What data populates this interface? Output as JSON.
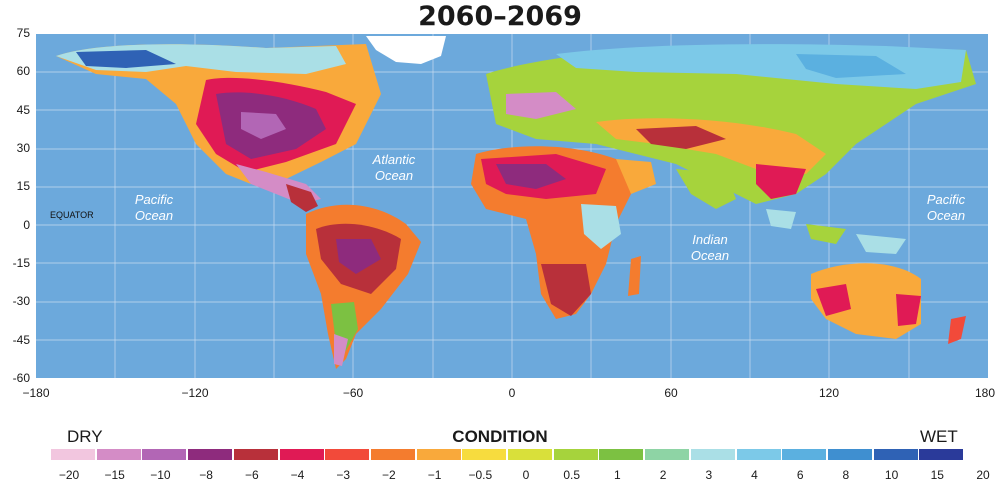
{
  "title": "2060–2069",
  "y_ticks": [
    "75",
    "60",
    "45",
    "30",
    "15",
    "0",
    "-15",
    "-30",
    "-45",
    "-60"
  ],
  "x_ticks": [
    "−180",
    "−120",
    "−60",
    "0",
    "60",
    "120",
    "180"
  ],
  "labels": {
    "atlantic": [
      "Atlantic",
      "Ocean"
    ],
    "pacific_west": [
      "Pacific",
      "Ocean"
    ],
    "pacific_east": [
      "Pacific",
      "Ocean"
    ],
    "indian": [
      "Indian",
      "Ocean"
    ],
    "equator": "EQUATOR"
  },
  "legend": {
    "title": "CONDITION",
    "dry_label": "DRY",
    "wet_label": "WET",
    "ticks": [
      "−20",
      "−15",
      "−10",
      "−8",
      "−6",
      "−4",
      "−3",
      "−2",
      "−1",
      "−0.5",
      "0",
      "0.5",
      "1",
      "2",
      "3",
      "4",
      "6",
      "8",
      "10",
      "15",
      "20"
    ],
    "colors": [
      "#f2c6df",
      "#d48cc6",
      "#b266b5",
      "#8e2b7d",
      "#b8303a",
      "#e01a55",
      "#f24a3a",
      "#f47c2e",
      "#f9a93b",
      "#f7dc3e",
      "#d9e03a",
      "#a6d33c",
      "#7cc142",
      "#8ed4a5",
      "#aadfe6",
      "#7cc9e8",
      "#5bb0e0",
      "#3f8fd0",
      "#2f62b5",
      "#2a3a9a"
    ]
  },
  "colors": {
    "ocean": "#6ca9dc",
    "ice": "#ffffff",
    "grid": "#c7dcef"
  }
}
